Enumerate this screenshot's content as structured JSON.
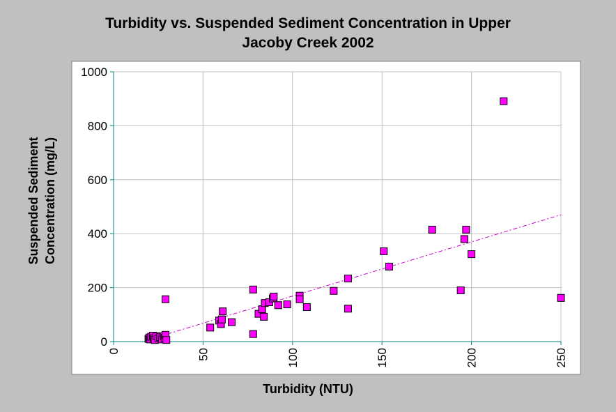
{
  "chart_data": {
    "type": "scatter",
    "title_lines": [
      "Turbidity vs. Suspended Sediment Concentration in Upper",
      "Jacoby Creek 2002"
    ],
    "xlabel": "Turbidity (NTU)",
    "ylabel_lines": [
      "Suspended Sediment",
      "Concentration (mg/L)"
    ],
    "xlim": [
      0,
      250
    ],
    "ylim": [
      0,
      1000
    ],
    "x_ticks": [
      "0",
      "50",
      "100",
      "150",
      "200",
      "250"
    ],
    "y_ticks": [
      "0",
      "200",
      "400",
      "600",
      "800",
      "1000"
    ],
    "grid": true,
    "point_color": "#ff00ff",
    "trendline_color": "#cc00cc",
    "trendline": {
      "x": [
        25,
        250
      ],
      "y": [
        18,
        470
      ]
    },
    "points": [
      {
        "x": 19.5,
        "y": 10
      },
      {
        "x": 20,
        "y": 15
      },
      {
        "x": 20.5,
        "y": 8
      },
      {
        "x": 21,
        "y": 18
      },
      {
        "x": 22,
        "y": 22
      },
      {
        "x": 22.5,
        "y": 12
      },
      {
        "x": 23,
        "y": 6
      },
      {
        "x": 24,
        "y": 20
      },
      {
        "x": 25,
        "y": 12
      },
      {
        "x": 26,
        "y": 16
      },
      {
        "x": 27,
        "y": 8
      },
      {
        "x": 28,
        "y": 20
      },
      {
        "x": 28.5,
        "y": 14
      },
      {
        "x": 29,
        "y": 25
      },
      {
        "x": 29.5,
        "y": 6
      },
      {
        "x": 29,
        "y": 157
      },
      {
        "x": 54,
        "y": 52
      },
      {
        "x": 59,
        "y": 78
      },
      {
        "x": 60,
        "y": 65
      },
      {
        "x": 60.5,
        "y": 82
      },
      {
        "x": 61,
        "y": 112
      },
      {
        "x": 66,
        "y": 72
      },
      {
        "x": 78,
        "y": 193
      },
      {
        "x": 78,
        "y": 28
      },
      {
        "x": 81,
        "y": 103
      },
      {
        "x": 83,
        "y": 120
      },
      {
        "x": 84,
        "y": 92
      },
      {
        "x": 84.5,
        "y": 143
      },
      {
        "x": 87,
        "y": 146
      },
      {
        "x": 89,
        "y": 160
      },
      {
        "x": 89.5,
        "y": 167
      },
      {
        "x": 92,
        "y": 135
      },
      {
        "x": 97,
        "y": 138
      },
      {
        "x": 104,
        "y": 170
      },
      {
        "x": 104,
        "y": 157
      },
      {
        "x": 108,
        "y": 128
      },
      {
        "x": 123,
        "y": 188
      },
      {
        "x": 131,
        "y": 234
      },
      {
        "x": 131,
        "y": 122
      },
      {
        "x": 151,
        "y": 335
      },
      {
        "x": 154,
        "y": 278
      },
      {
        "x": 178,
        "y": 415
      },
      {
        "x": 194,
        "y": 190
      },
      {
        "x": 196,
        "y": 380
      },
      {
        "x": 197,
        "y": 415
      },
      {
        "x": 200,
        "y": 324
      },
      {
        "x": 218,
        "y": 891
      },
      {
        "x": 250,
        "y": 162
      }
    ]
  }
}
